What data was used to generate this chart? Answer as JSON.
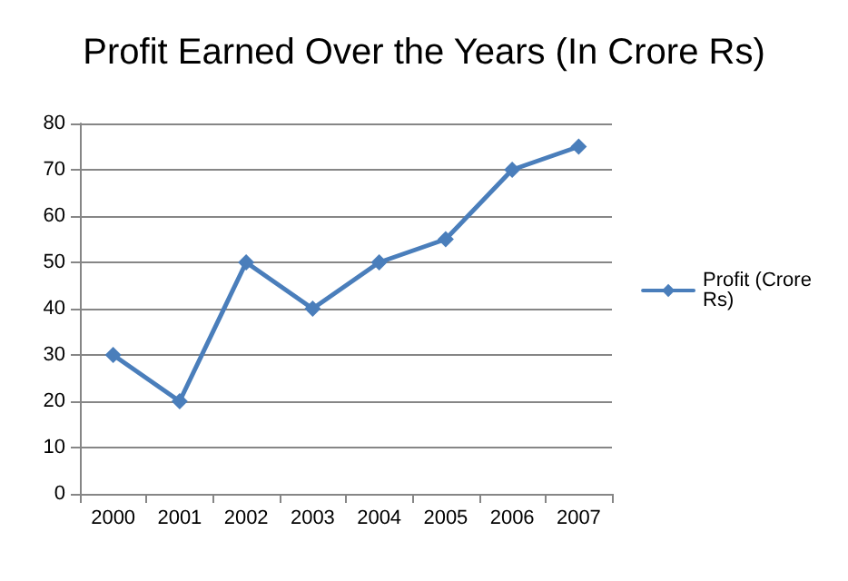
{
  "chart_data": {
    "type": "line",
    "title": "Profit Earned Over the Years (In Crore Rs)",
    "categories": [
      "2000",
      "2001",
      "2002",
      "2003",
      "2004",
      "2005",
      "2006",
      "2007"
    ],
    "series": [
      {
        "name": "Profit (Crore Rs)",
        "color": "#4a7ebb",
        "values": [
          30,
          20,
          50,
          40,
          50,
          55,
          70,
          75
        ]
      }
    ],
    "ylim": [
      0,
      80
    ],
    "yticks": [
      0,
      10,
      20,
      30,
      40,
      50,
      60,
      70,
      80
    ],
    "grid": "y",
    "legend": "right",
    "marker": "diamond",
    "line_style": "solid"
  }
}
